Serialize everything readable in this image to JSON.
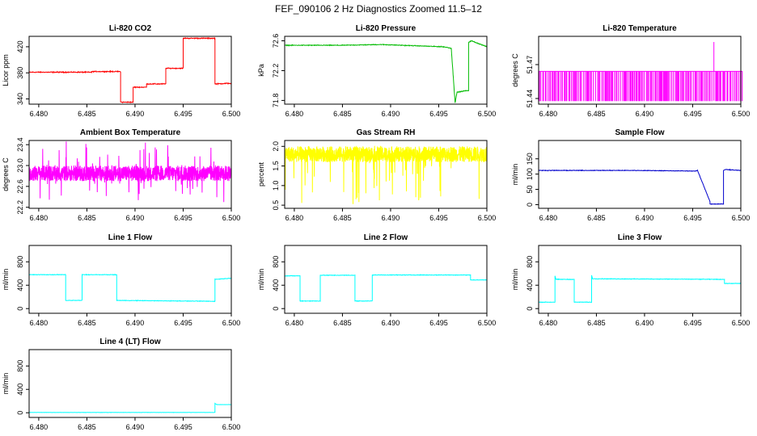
{
  "figure_title": "FEF_090106  2 Hz Diagnostics Zoomed 11.5–12",
  "chart_data": [
    {
      "type": "line",
      "title": "Li-820 CO2",
      "ylabel": "Licor ppm",
      "color": "#ff0000",
      "xlim": [
        6.479,
        6.5
      ],
      "xticks": [
        6.48,
        6.485,
        6.49,
        6.495,
        6.5
      ],
      "xtick_labels": [
        "6.480",
        "6.485",
        "6.490",
        "6.495",
        "6.500"
      ],
      "ylim": [
        332,
        436
      ],
      "yticks": [
        340,
        380,
        420
      ],
      "ytick_labels": [
        "340",
        "380",
        "420"
      ],
      "noise": 0.6,
      "series": [
        {
          "x": [
            6.479,
            6.4855,
            6.4855,
            6.4885,
            6.4885,
            6.4898,
            6.4898,
            6.4912,
            6.4912,
            6.4932,
            6.4932,
            6.495,
            6.495,
            6.4983,
            6.4983,
            6.4998,
            6.5
          ],
          "y": [
            381,
            381,
            382,
            382,
            335,
            335,
            358,
            358,
            363,
            363,
            387,
            387,
            433,
            433,
            363,
            364,
            363
          ]
        }
      ]
    },
    {
      "type": "line",
      "title": "Li-820 Pressure",
      "ylabel": "kPa",
      "color": "#00bb00",
      "xlim": [
        6.479,
        6.5
      ],
      "xticks": [
        6.48,
        6.485,
        6.49,
        6.495,
        6.5
      ],
      "xtick_labels": [
        "6.480",
        "6.485",
        "6.490",
        "6.495",
        "6.500"
      ],
      "ylim": [
        71.75,
        72.66
      ],
      "yticks": [
        71.8,
        72.2,
        72.6
      ],
      "ytick_labels": [
        "71.8",
        "72.2",
        "72.6"
      ],
      "noise": 0.004,
      "series": [
        {
          "x": [
            6.479,
            6.485,
            6.489,
            6.4955,
            6.4963,
            6.4967,
            6.4969,
            6.4978,
            6.4981,
            6.4981,
            6.4984,
            6.5
          ],
          "y": [
            72.54,
            72.54,
            72.55,
            72.52,
            72.5,
            71.77,
            71.91,
            71.93,
            71.93,
            72.58,
            72.6,
            72.52
          ]
        }
      ]
    },
    {
      "type": "line",
      "title": "Li-820 Temperature",
      "ylabel": "degrees C",
      "color": "#ff00ff",
      "xlim": [
        6.479,
        6.5
      ],
      "xticks": [
        6.48,
        6.485,
        6.49,
        6.495,
        6.5
      ],
      "xtick_labels": [
        "6.480",
        "6.485",
        "6.490",
        "6.495",
        "6.500"
      ],
      "ylim": [
        51.435,
        51.495
      ],
      "yticks": [
        51.44,
        51.47
      ],
      "ytick_labels": [
        "51.44",
        "51.47"
      ],
      "pattern": "two-level",
      "levels": [
        51.438,
        51.464
      ],
      "spike": {
        "x": 6.4972,
        "y": 51.49
      },
      "series": [
        {
          "x": [
            6.479,
            6.5
          ],
          "y": [
            51.464,
            51.464
          ]
        }
      ]
    },
    {
      "type": "line",
      "title": "Ambient Box Temperature",
      "ylabel": "degrees C",
      "color": "#ff00ff",
      "xlim": [
        6.479,
        6.5
      ],
      "xticks": [
        6.48,
        6.485,
        6.49,
        6.495,
        6.5
      ],
      "xtick_labels": [
        "6.480",
        "6.485",
        "6.490",
        "6.495",
        "6.500"
      ],
      "ylim": [
        22.18,
        23.48
      ],
      "yticks": [
        22.2,
        22.6,
        23.0,
        23.4
      ],
      "ytick_labels": [
        "22.2",
        "22.6",
        "23.0",
        "23.4"
      ],
      "pattern": "noisy-band",
      "band": [
        22.7,
        23.0
      ],
      "series": [
        {
          "x": [
            6.479,
            6.5
          ],
          "y": [
            22.85,
            22.85
          ]
        }
      ]
    },
    {
      "type": "line",
      "title": "Gas Stream RH",
      "ylabel": "percent",
      "color": "#ffff00",
      "xlim": [
        6.479,
        6.5
      ],
      "xticks": [
        6.48,
        6.485,
        6.49,
        6.495,
        6.5
      ],
      "xtick_labels": [
        "6.480",
        "6.485",
        "6.490",
        "6.495",
        "6.500"
      ],
      "ylim": [
        0.42,
        2.15
      ],
      "yticks": [
        0.5,
        1.0,
        1.5,
        2.0
      ],
      "ytick_labels": [
        "0.5",
        "1.0",
        "1.5",
        "2.0"
      ],
      "pattern": "noisy-band-dips",
      "band": [
        1.6,
        2.0
      ],
      "series": [
        {
          "x": [
            6.479,
            6.5
          ],
          "y": [
            1.8,
            1.8
          ]
        }
      ]
    },
    {
      "type": "line",
      "title": "Sample Flow",
      "ylabel": "ml/min",
      "color": "#0000cc",
      "xlim": [
        6.479,
        6.5
      ],
      "xticks": [
        6.48,
        6.485,
        6.49,
        6.495,
        6.5
      ],
      "xtick_labels": [
        "6.480",
        "6.485",
        "6.490",
        "6.495",
        "6.500"
      ],
      "ylim": [
        -12,
        210
      ],
      "yticks": [
        0,
        50,
        100,
        150
      ],
      "ytick_labels": [
        "0",
        "50",
        "100",
        "150"
      ],
      "noise": 0.8,
      "series": [
        {
          "x": [
            6.479,
            6.489,
            6.4953,
            6.4955,
            6.4968,
            6.4968,
            6.4982,
            6.4982,
            6.4984,
            6.5
          ],
          "y": [
            112,
            112,
            110,
            112,
            10,
            2,
            2,
            112,
            115,
            112
          ]
        }
      ]
    },
    {
      "type": "line",
      "title": "Line 1 Flow",
      "ylabel": "ml/min",
      "color": "#00ffff",
      "xlim": [
        6.479,
        6.5
      ],
      "xticks": [
        6.48,
        6.485,
        6.49,
        6.495,
        6.5
      ],
      "xtick_labels": [
        "6.480",
        "6.485",
        "6.490",
        "6.495",
        "6.500"
      ],
      "ylim": [
        -80,
        1080
      ],
      "yticks": [
        0,
        400,
        800
      ],
      "ytick_labels": [
        "0",
        "400",
        "800"
      ],
      "noise": 4,
      "series": [
        {
          "x": [
            6.479,
            6.4828,
            6.4828,
            6.4845,
            6.4845,
            6.4881,
            6.4881,
            6.4983,
            6.4983,
            6.5
          ],
          "y": [
            580,
            580,
            140,
            140,
            580,
            580,
            140,
            125,
            500,
            520
          ]
        }
      ]
    },
    {
      "type": "line",
      "title": "Line 2 Flow",
      "ylabel": "ml/min",
      "color": "#00ffff",
      "xlim": [
        6.479,
        6.5
      ],
      "xticks": [
        6.48,
        6.485,
        6.49,
        6.495,
        6.5
      ],
      "xtick_labels": [
        "6.480",
        "6.485",
        "6.490",
        "6.495",
        "6.500"
      ],
      "ylim": [
        -80,
        1080
      ],
      "yticks": [
        0,
        400,
        800
      ],
      "ytick_labels": [
        "0",
        "400",
        "800"
      ],
      "noise": 4,
      "series": [
        {
          "x": [
            6.479,
            6.4806,
            6.4806,
            6.4827,
            6.4827,
            6.4863,
            6.4863,
            6.4881,
            6.4881,
            6.4983,
            6.4983,
            6.5
          ],
          "y": [
            560,
            560,
            130,
            130,
            570,
            570,
            130,
            130,
            575,
            575,
            490,
            490
          ]
        }
      ]
    },
    {
      "type": "line",
      "title": "Line 3 Flow",
      "ylabel": "ml/min",
      "color": "#00ffff",
      "xlim": [
        6.479,
        6.5
      ],
      "xticks": [
        6.48,
        6.485,
        6.49,
        6.495,
        6.5
      ],
      "xtick_labels": [
        "6.480",
        "6.485",
        "6.490",
        "6.495",
        "6.500"
      ],
      "ylim": [
        -80,
        1080
      ],
      "yticks": [
        0,
        400,
        800
      ],
      "ytick_labels": [
        "0",
        "400",
        "800"
      ],
      "noise": 4,
      "series": [
        {
          "x": [
            6.479,
            6.4807,
            6.4807,
            6.4808,
            6.4827,
            6.4827,
            6.4845,
            6.4845,
            6.4846,
            6.4983,
            6.4983,
            6.5
          ],
          "y": [
            110,
            110,
            560,
            500,
            500,
            110,
            110,
            570,
            510,
            500,
            430,
            430
          ]
        }
      ]
    },
    {
      "type": "line",
      "title": "Line 4 (LT) Flow",
      "ylabel": "ml/min",
      "color": "#00ffff",
      "xlim": [
        6.479,
        6.5
      ],
      "xticks": [
        6.48,
        6.485,
        6.49,
        6.495,
        6.5
      ],
      "xtick_labels": [
        "6.480",
        "6.485",
        "6.490",
        "6.495",
        "6.500"
      ],
      "ylim": [
        -80,
        1080
      ],
      "yticks": [
        0,
        400,
        800
      ],
      "ytick_labels": [
        "0",
        "400",
        "800"
      ],
      "noise": 1.5,
      "series": [
        {
          "x": [
            6.479,
            6.4983,
            6.4983,
            6.4985,
            6.5
          ],
          "y": [
            5,
            5,
            160,
            140,
            140
          ]
        }
      ]
    }
  ]
}
